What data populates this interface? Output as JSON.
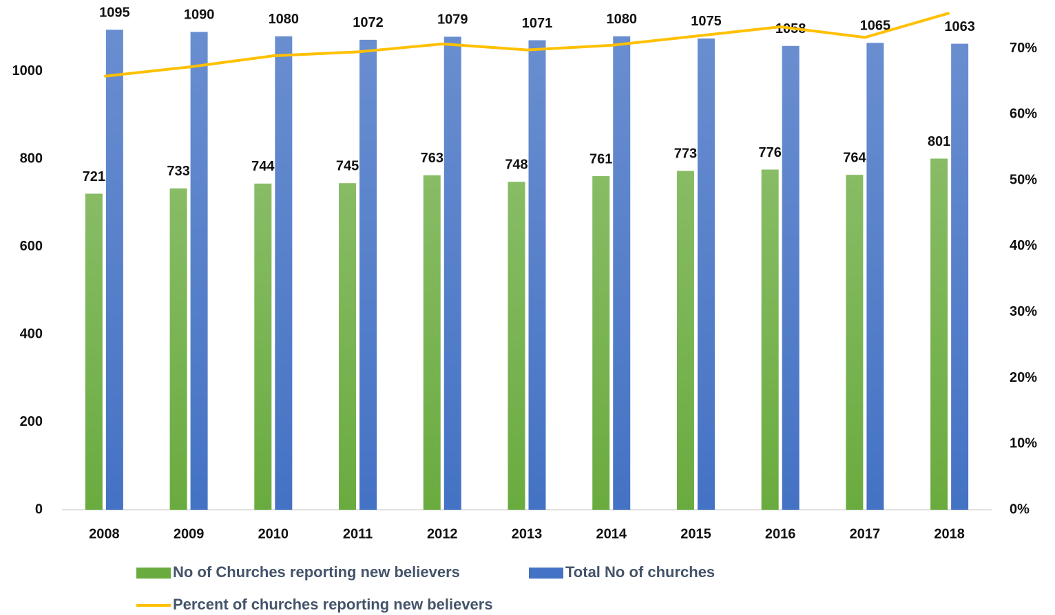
{
  "chart_data": {
    "type": "bar",
    "categories": [
      "2008",
      "2009",
      "2010",
      "2011",
      "2012",
      "2013",
      "2014",
      "2015",
      "2016",
      "2017",
      "2018"
    ],
    "series": [
      {
        "name": "No of Churches reporting new believers",
        "color": "#6aab3f",
        "type": "bar",
        "values": [
          721,
          733,
          744,
          745,
          763,
          748,
          761,
          773,
          776,
          764,
          801
        ]
      },
      {
        "name": "Total No of churches",
        "color": "#4472c4",
        "type": "bar",
        "values": [
          1095,
          1090,
          1080,
          1072,
          1079,
          1071,
          1080,
          1075,
          1058,
          1065,
          1063
        ]
      },
      {
        "name": "Percent of churches reporting new believers",
        "color": "#ffc000",
        "type": "line",
        "axis": "y2",
        "values": [
          65.8,
          67.2,
          68.9,
          69.5,
          70.7,
          69.8,
          70.5,
          71.9,
          73.3,
          71.7,
          75.4
        ]
      }
    ],
    "ylim": [
      0,
      1100
    ],
    "yticks": [
      0,
      200,
      400,
      600,
      800,
      1000
    ],
    "y2lim": [
      0,
      73.2
    ],
    "y2ticks": [
      {
        "value": 0,
        "label": "0%"
      },
      {
        "value": 10,
        "label": "10%"
      },
      {
        "value": 20,
        "label": "20%"
      },
      {
        "value": 30,
        "label": "30%"
      },
      {
        "value": 40,
        "label": "40%"
      },
      {
        "value": 50,
        "label": "50%"
      },
      {
        "value": 60,
        "label": "60%"
      },
      {
        "value": 70,
        "label": "70%"
      }
    ],
    "legend": "bottom"
  }
}
